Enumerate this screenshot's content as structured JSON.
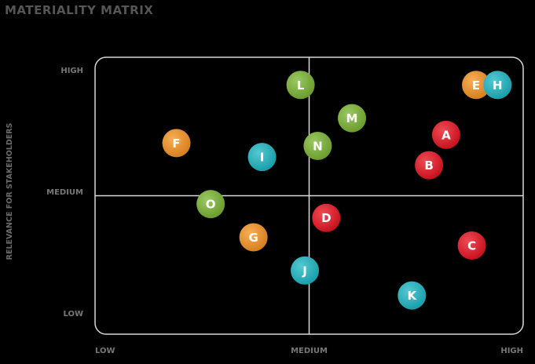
{
  "title": "MATERIALITY MATRIX",
  "chart_data": {
    "type": "scatter",
    "title": "MATERIALITY MATRIX",
    "xlabel": "",
    "ylabel": "RELEVANCE FOR STAKEHOLDERS",
    "xlim": [
      0,
      100
    ],
    "ylim": [
      0,
      100
    ],
    "x_ticks": [
      "LOW",
      "MEDIUM",
      "HIGH"
    ],
    "y_ticks": [
      "HIGH",
      "MEDIUM",
      "LOW"
    ],
    "grid": "center quadrant lines",
    "points": [
      {
        "label": "A",
        "x": 82,
        "y": 72,
        "color": "#e8101e"
      },
      {
        "label": "B",
        "x": 78,
        "y": 61,
        "color": "#e8101e"
      },
      {
        "label": "C",
        "x": 88,
        "y": 32,
        "color": "#e8101e"
      },
      {
        "label": "D",
        "x": 54,
        "y": 42,
        "color": "#e8101e"
      },
      {
        "label": "E",
        "x": 89,
        "y": 90,
        "color": "#f7931e"
      },
      {
        "label": "F",
        "x": 19,
        "y": 69,
        "color": "#f7931e"
      },
      {
        "label": "G",
        "x": 37,
        "y": 35,
        "color": "#f7931e"
      },
      {
        "label": "H",
        "x": 94,
        "y": 90,
        "color": "#1ab7c4"
      },
      {
        "label": "I",
        "x": 39,
        "y": 64,
        "color": "#1ab7c4"
      },
      {
        "label": "J",
        "x": 49,
        "y": 23,
        "color": "#1ab7c4"
      },
      {
        "label": "K",
        "x": 74,
        "y": 14,
        "color": "#1ab7c4"
      },
      {
        "label": "L",
        "x": 48,
        "y": 90,
        "color": "#7ab530"
      },
      {
        "label": "M",
        "x": 60,
        "y": 78,
        "color": "#7ab530"
      },
      {
        "label": "N",
        "x": 52,
        "y": 68,
        "color": "#7ab530"
      },
      {
        "label": "O",
        "x": 27,
        "y": 47,
        "color": "#7ab530"
      }
    ]
  }
}
